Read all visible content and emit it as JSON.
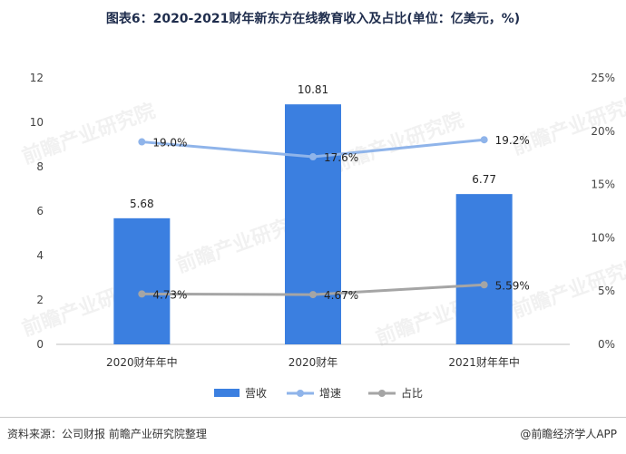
{
  "title": "图表6：2020-2021财年新东方在线教育收入及占比(单位：亿美元，%)",
  "source": "资料来源：公司财报 前瞻产业研究院整理",
  "brand": "@前瞻经济学人APP",
  "watermark": "前瞻产业研究院",
  "colors": {
    "bar": "#3b7fe0",
    "growth_line": "#8fb4ea",
    "share_line": "#a5a5a5"
  },
  "chart_data": {
    "type": "bar",
    "categories": [
      "2020财年年中",
      "2020财年",
      "2021财年年中"
    ],
    "y_left": {
      "min": 0,
      "max": 12,
      "step": 2,
      "ticks": [
        "0",
        "2",
        "4",
        "6",
        "8",
        "10",
        "12"
      ]
    },
    "y_right": {
      "min": 0,
      "max": 25,
      "step": 5,
      "ticks": [
        "0%",
        "5%",
        "10%",
        "15%",
        "20%",
        "25%"
      ]
    },
    "series": [
      {
        "name": "营收",
        "type": "bar",
        "axis": "left",
        "values": [
          5.68,
          10.81,
          6.77
        ],
        "labels": [
          "5.68",
          "10.81",
          "6.77"
        ]
      },
      {
        "name": "增速",
        "type": "line",
        "axis": "right",
        "values": [
          19.0,
          17.6,
          19.2
        ],
        "labels": [
          "19.0%",
          "17.6%",
          "19.2%"
        ]
      },
      {
        "name": "占比",
        "type": "line",
        "axis": "right",
        "values": [
          4.73,
          4.67,
          5.59
        ],
        "labels": [
          "4.73%",
          "4.67%",
          "5.59%"
        ]
      }
    ],
    "legend_position": "bottom",
    "grid": false
  }
}
